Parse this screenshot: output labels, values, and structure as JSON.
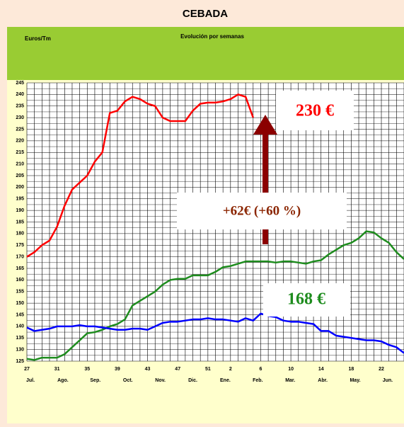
{
  "chart_data": {
    "type": "line",
    "title": "CEBADA",
    "y_label": "Euros/Tm",
    "subtitle": "Evolución por semanas",
    "categories": [
      "27",
      null,
      null,
      null,
      "31",
      null,
      null,
      null,
      "35",
      null,
      null,
      null,
      "39",
      null,
      null,
      null,
      "43",
      null,
      null,
      null,
      "47",
      null,
      null,
      null,
      "51",
      null,
      null,
      "2",
      null,
      null,
      null,
      "6",
      null,
      null,
      null,
      "10",
      null,
      null,
      null,
      "14",
      null,
      null,
      null,
      "18",
      null,
      null,
      null,
      "22",
      null,
      null,
      null
    ],
    "months": [
      "Jul.",
      "Ago.",
      "Sep.",
      "Oct.",
      "Nov.",
      "Dic.",
      "Ene.",
      "Feb.",
      "Mar.",
      "Abr.",
      "May.",
      "Jun."
    ],
    "ylim": [
      125,
      245
    ],
    "yticks": [
      125,
      130,
      135,
      140,
      145,
      150,
      155,
      160,
      165,
      170,
      175,
      180,
      185,
      190,
      195,
      200,
      205,
      210,
      215,
      220,
      225,
      230,
      235,
      240,
      245
    ],
    "grid": true,
    "series": [
      {
        "color": "#ff0000",
        "values": [
          170,
          172,
          175,
          177,
          183,
          192,
          199,
          202,
          205,
          211,
          215,
          232,
          233,
          237,
          239,
          238,
          236,
          235,
          230,
          228.5,
          228.5,
          228.5,
          233,
          236,
          236.5,
          236.5,
          237,
          238,
          240,
          239,
          230,
          null,
          null,
          null,
          null,
          null,
          null,
          null,
          null,
          null,
          null,
          null,
          null,
          null,
          null,
          null,
          null,
          null,
          null,
          null,
          null
        ]
      },
      {
        "color": "#1e8c1e",
        "values": [
          126,
          125.5,
          126.5,
          126.5,
          126.5,
          128,
          131,
          134,
          137,
          137.5,
          138.5,
          140,
          141,
          143,
          149,
          151,
          153,
          155,
          158,
          160,
          160.5,
          160.5,
          162,
          162,
          162,
          163.5,
          165.5,
          166,
          167,
          168,
          168,
          168,
          168,
          167.5,
          168,
          168,
          167.5,
          167,
          168,
          168.5,
          171,
          173,
          175,
          176,
          178,
          181,
          180.5,
          178,
          176,
          172,
          169
        ]
      },
      {
        "color": "#0000ff",
        "values": [
          139.5,
          138,
          138.5,
          139,
          140,
          140,
          140,
          140.5,
          140,
          140,
          139.5,
          139,
          138.5,
          138.5,
          139,
          139,
          138.5,
          140,
          141.5,
          142,
          142,
          142.5,
          143,
          143,
          143.5,
          143,
          143,
          142.5,
          142,
          143.5,
          142.5,
          145.5,
          144.5,
          144,
          142.5,
          142,
          142,
          141.5,
          141,
          138,
          138,
          136,
          135.5,
          135,
          134.5,
          134,
          134,
          133.5,
          132,
          131,
          128.5
        ]
      }
    ],
    "annotations": [
      "230 €",
      "+62€ (+60 %)",
      "168 €"
    ]
  }
}
